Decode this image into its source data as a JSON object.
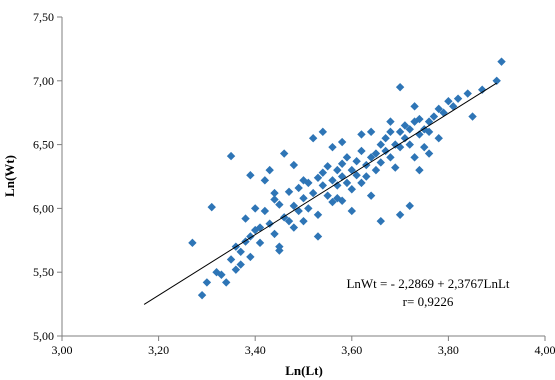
{
  "chart_data": {
    "type": "scatter",
    "xlabel": "Ln(Lt)",
    "ylabel": "Ln(Wt)",
    "xlim": [
      3.0,
      4.0
    ],
    "ylim": [
      5.0,
      7.5
    ],
    "x_ticks": [
      "3,00",
      "3,20",
      "3,40",
      "3,60",
      "3,80",
      "4,00"
    ],
    "y_ticks": [
      "5,00",
      "5,50",
      "6,00",
      "6,50",
      "7,00",
      "7,50"
    ],
    "grid": false,
    "marker_color": "#2e75b6",
    "line_color": "#000000",
    "regression": {
      "intercept": -2.2869,
      "slope": 2.3767,
      "x_range": [
        3.17,
        3.9
      ]
    },
    "annotations": {
      "equation": "LnWt = - 2,2869 + 2,3767LnLt",
      "r": "r= 0,9226"
    },
    "series": [
      {
        "points": [
          [
            3.27,
            5.73
          ],
          [
            3.29,
            5.32
          ],
          [
            3.3,
            5.42
          ],
          [
            3.31,
            6.01
          ],
          [
            3.32,
            5.5
          ],
          [
            3.34,
            5.42
          ],
          [
            3.35,
            6.41
          ],
          [
            3.35,
            5.6
          ],
          [
            3.36,
            5.7
          ],
          [
            3.37,
            5.56
          ],
          [
            3.38,
            5.74
          ],
          [
            3.38,
            5.92
          ],
          [
            3.39,
            6.26
          ],
          [
            3.39,
            5.62
          ],
          [
            3.4,
            5.83
          ],
          [
            3.41,
            5.73
          ],
          [
            3.42,
            6.22
          ],
          [
            3.42,
            5.98
          ],
          [
            3.43,
            5.88
          ],
          [
            3.44,
            6.07
          ],
          [
            3.44,
            5.8
          ],
          [
            3.45,
            6.03
          ],
          [
            3.45,
            5.7
          ],
          [
            3.46,
            6.43
          ],
          [
            3.46,
            5.93
          ],
          [
            3.47,
            6.13
          ],
          [
            3.48,
            6.02
          ],
          [
            3.48,
            5.85
          ],
          [
            3.49,
            6.16
          ],
          [
            3.5,
            6.08
          ],
          [
            3.5,
            5.9
          ],
          [
            3.51,
            6.2
          ],
          [
            3.51,
            6.0
          ],
          [
            3.52,
            6.55
          ],
          [
            3.52,
            6.12
          ],
          [
            3.53,
            6.24
          ],
          [
            3.53,
            5.95
          ],
          [
            3.54,
            6.18
          ],
          [
            3.54,
            6.28
          ],
          [
            3.55,
            6.1
          ],
          [
            3.55,
            6.33
          ],
          [
            3.56,
            6.22
          ],
          [
            3.56,
            6.05
          ],
          [
            3.57,
            6.3
          ],
          [
            3.57,
            6.18
          ],
          [
            3.58,
            6.35
          ],
          [
            3.58,
            6.25
          ],
          [
            3.58,
            6.06
          ],
          [
            3.59,
            6.4
          ],
          [
            3.59,
            6.2
          ],
          [
            3.6,
            6.3
          ],
          [
            3.6,
            6.15
          ],
          [
            3.61,
            6.37
          ],
          [
            3.61,
            6.26
          ],
          [
            3.62,
            6.45
          ],
          [
            3.62,
            6.2
          ],
          [
            3.63,
            6.34
          ],
          [
            3.63,
            6.25
          ],
          [
            3.64,
            6.4
          ],
          [
            3.64,
            6.1
          ],
          [
            3.65,
            6.43
          ],
          [
            3.65,
            6.3
          ],
          [
            3.66,
            6.5
          ],
          [
            3.66,
            6.36
          ],
          [
            3.67,
            6.45
          ],
          [
            3.67,
            6.55
          ],
          [
            3.68,
            6.4
          ],
          [
            3.68,
            6.6
          ],
          [
            3.69,
            6.5
          ],
          [
            3.69,
            6.32
          ],
          [
            3.7,
            6.6
          ],
          [
            3.7,
            6.48
          ],
          [
            3.7,
            6.95
          ],
          [
            3.71,
            6.65
          ],
          [
            3.71,
            6.55
          ],
          [
            3.72,
            6.62
          ],
          [
            3.72,
            6.5
          ],
          [
            3.73,
            6.68
          ],
          [
            3.73,
            6.4
          ],
          [
            3.74,
            6.7
          ],
          [
            3.74,
            6.58
          ],
          [
            3.75,
            6.62
          ],
          [
            3.75,
            6.48
          ],
          [
            3.76,
            6.68
          ],
          [
            3.77,
            6.72
          ],
          [
            3.78,
            6.78
          ],
          [
            3.79,
            6.75
          ],
          [
            3.8,
            6.84
          ],
          [
            3.81,
            6.8
          ],
          [
            3.82,
            6.86
          ],
          [
            3.84,
            6.9
          ],
          [
            3.85,
            6.72
          ],
          [
            3.87,
            6.93
          ],
          [
            3.9,
            7.0
          ],
          [
            3.91,
            7.15
          ],
          [
            3.45,
            5.67
          ],
          [
            3.53,
            5.78
          ],
          [
            3.57,
            6.08
          ],
          [
            3.6,
            5.98
          ],
          [
            3.66,
            5.9
          ],
          [
            3.7,
            5.95
          ],
          [
            3.72,
            6.02
          ],
          [
            3.74,
            6.3
          ],
          [
            3.76,
            6.43
          ],
          [
            3.78,
            6.55
          ],
          [
            3.54,
            6.6
          ],
          [
            3.48,
            6.34
          ],
          [
            3.43,
            6.3
          ],
          [
            3.56,
            6.48
          ],
          [
            3.58,
            6.52
          ],
          [
            3.62,
            6.58
          ],
          [
            3.64,
            6.6
          ],
          [
            3.68,
            6.68
          ],
          [
            3.73,
            6.8
          ],
          [
            3.76,
            6.6
          ],
          [
            3.5,
            6.22
          ],
          [
            3.49,
            5.98
          ],
          [
            3.47,
            5.9
          ],
          [
            3.41,
            5.85
          ],
          [
            3.39,
            5.78
          ],
          [
            3.37,
            5.66
          ],
          [
            3.36,
            5.52
          ],
          [
            3.33,
            5.48
          ],
          [
            3.4,
            6.0
          ],
          [
            3.44,
            6.12
          ]
        ]
      }
    ]
  }
}
